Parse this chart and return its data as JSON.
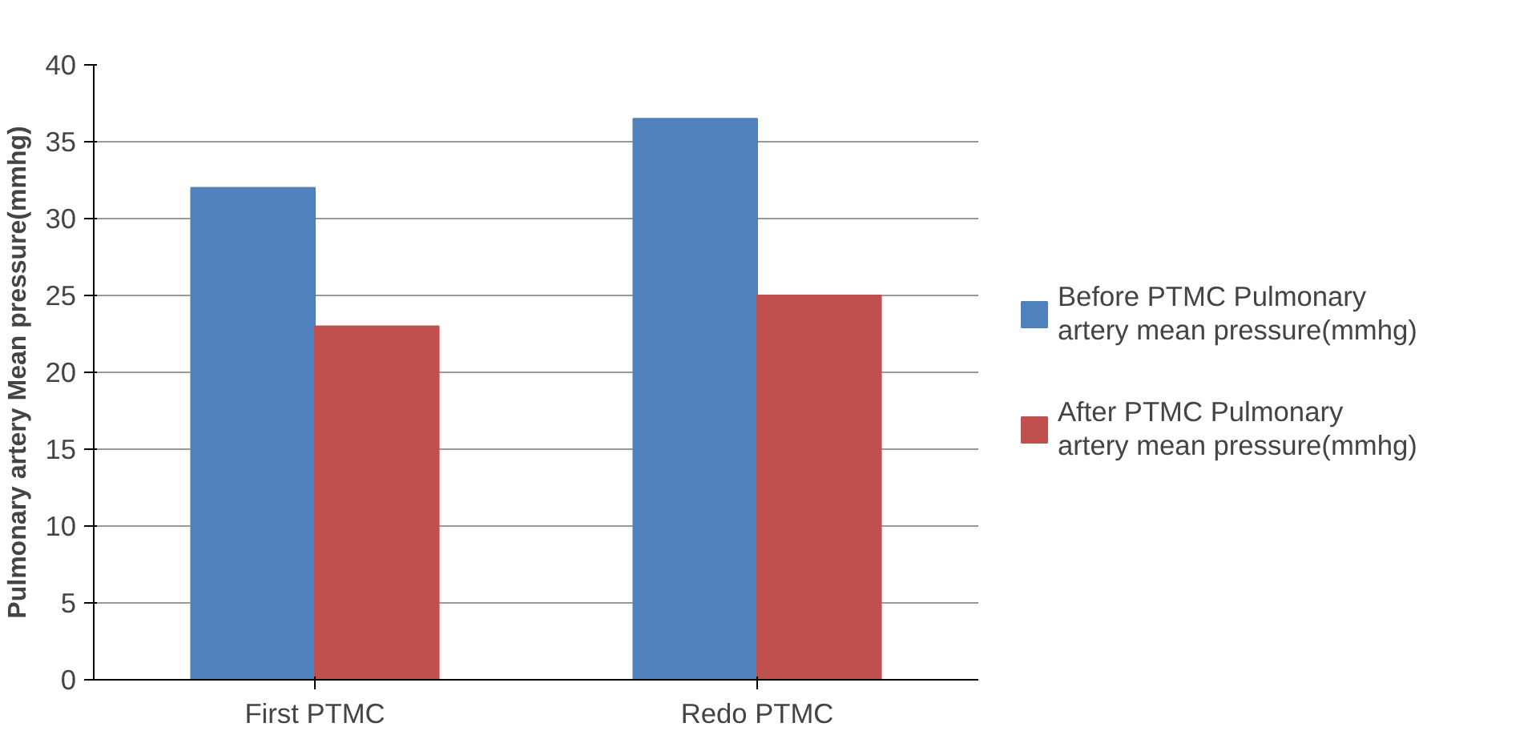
{
  "chart_data": {
    "type": "bar",
    "ylabel": "Pulmonary artery Mean pressure(mmhg)",
    "categories": [
      "First PTMC",
      "Redo PTMC"
    ],
    "series": [
      {
        "name": "Before PTMC Pulmonary artery mean pressure(mmhg)",
        "color": "#4f81bd",
        "values": [
          32,
          36.5
        ]
      },
      {
        "name": "After PTMC Pulmonary artery mean pressure(mmhg)",
        "color": "#c0504d",
        "values": [
          23,
          25
        ]
      }
    ],
    "ylim": [
      0,
      40
    ],
    "yticks": [
      0,
      5,
      10,
      15,
      20,
      25,
      30,
      35,
      40
    ],
    "grid": "y",
    "legend": "right"
  }
}
